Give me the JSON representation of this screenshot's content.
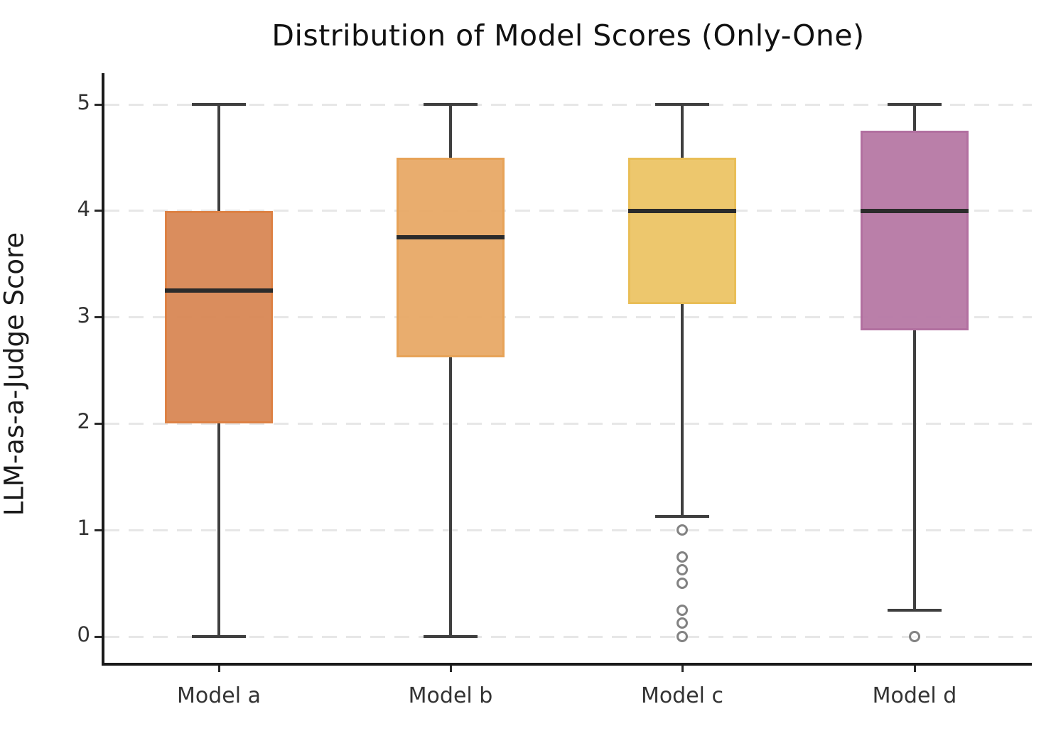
{
  "title": "Distribution of Model Scores (Only-One)",
  "chart_data": {
    "type": "box",
    "title": "Distribution of Model Scores (Only-One)",
    "xlabel": "",
    "ylabel": "LLM-as-a-Judge Score",
    "categories": [
      "Model a",
      "Model b",
      "Model c",
      "Model d"
    ],
    "yticks": [
      "0",
      "1",
      "2",
      "3",
      "4",
      "5"
    ],
    "ylim": [
      -0.25,
      5.3
    ],
    "grid": "horizontal-dashed",
    "legend_position": "none",
    "series": [
      {
        "name": "Model a",
        "whislo": 0.0,
        "q1": 2.0,
        "med": 3.25,
        "q3": 4.0,
        "whishi": 5.0,
        "fliers": [],
        "fill": "#d98a58",
        "edge": "#dc7e40"
      },
      {
        "name": "Model b",
        "whislo": 0.0,
        "q1": 2.625,
        "med": 3.75,
        "q3": 4.5,
        "whishi": 5.0,
        "fliers": [],
        "fill": "#e9ab6a",
        "edge": "#e7a153"
      },
      {
        "name": "Model c",
        "whislo": 1.125,
        "q1": 3.125,
        "med": 4.0,
        "q3": 4.5,
        "whishi": 5.0,
        "fliers": [
          1.0,
          0.75,
          0.625,
          0.5,
          0.25,
          0.125,
          0.0
        ],
        "fill": "#edc669",
        "edge": "#e9bc52"
      },
      {
        "name": "Model d",
        "whislo": 0.25,
        "q1": 2.875,
        "med": 4.0,
        "q3": 4.75,
        "whishi": 5.0,
        "fliers": [
          0.0
        ],
        "fill": "#b87ba7",
        "edge": "#b06c9d"
      }
    ],
    "style": {
      "median_color": "#2b2b2b",
      "whisker_color": "#3f3f3f",
      "flier_edge_color": "#828282",
      "grid_color": "#e7e7e7",
      "spine_color": "#1a1a1a",
      "background": "#ffffff",
      "tick_text_color": "#333333",
      "title_color": "#111111"
    }
  }
}
